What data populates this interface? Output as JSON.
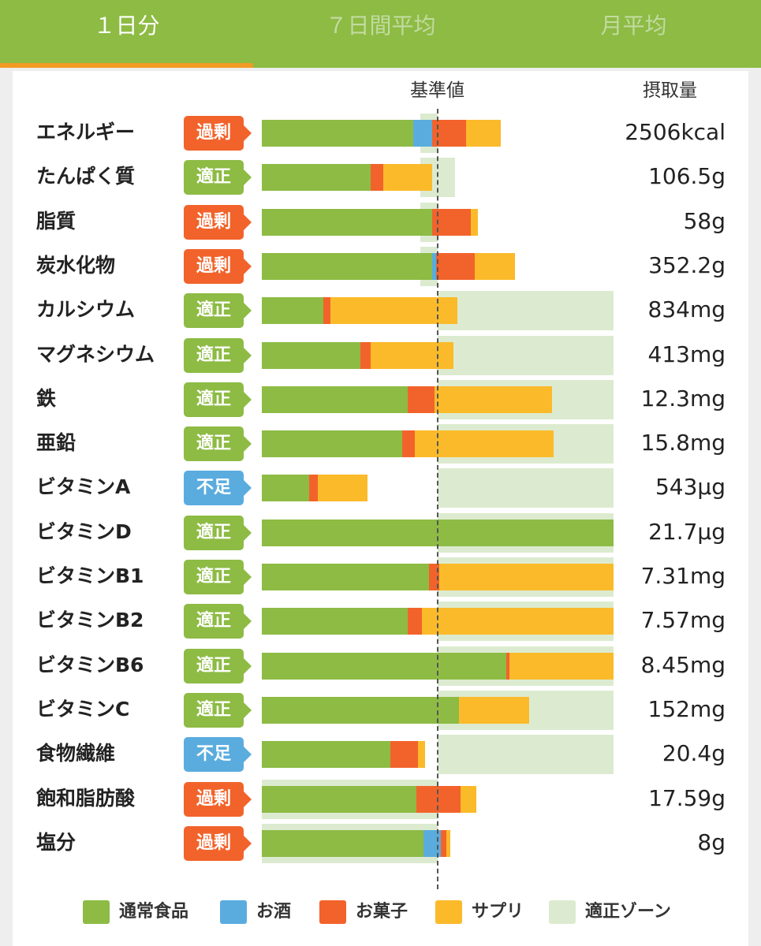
{
  "tabs": [
    {
      "label": "１日分",
      "active": true
    },
    {
      "label": "７日間平均",
      "active": false
    },
    {
      "label": "月平均",
      "active": false
    }
  ],
  "header": {
    "reference_label": "基準値",
    "intake_label": "摂取量"
  },
  "colors": {
    "normal_food": "#8dbb44",
    "alcohol": "#5aacde",
    "snacks": "#f2632b",
    "supplement": "#fbba2a",
    "zone": "#dcebd0",
    "excess": "#f2632b",
    "proper": "#8dbb44",
    "deficient": "#5aacde"
  },
  "status_labels": {
    "excess": "過剰",
    "proper": "適正",
    "deficient": "不足"
  },
  "chart_data": {
    "type": "bar",
    "stacked": true,
    "orientation": "horizontal",
    "reference_percent": 100,
    "series_names": [
      "通常食品",
      "お酒",
      "お菓子",
      "サプリ"
    ],
    "rows": [
      {
        "name": "エネルギー",
        "status": "excess",
        "value": "2506kcal",
        "zone": [
          90,
          100
        ],
        "segments": [
          86,
          11,
          19,
          20
        ]
      },
      {
        "name": "たんぱく質",
        "status": "proper",
        "value": "106.5g",
        "zone": [
          90,
          110
        ],
        "segments": [
          62,
          0,
          7,
          28
        ]
      },
      {
        "name": "脂質",
        "status": "excess",
        "value": "58g",
        "zone": [
          90,
          100
        ],
        "segments": [
          97,
          0,
          22,
          4
        ]
      },
      {
        "name": "炭水化物",
        "status": "excess",
        "value": "352.2g",
        "zone": [
          90,
          100
        ],
        "segments": [
          97,
          2,
          22,
          23
        ]
      },
      {
        "name": "カルシウム",
        "status": "proper",
        "value": "834mg",
        "zone": [
          100,
          200
        ],
        "segments": [
          35,
          0,
          4,
          72
        ]
      },
      {
        "name": "マグネシウム",
        "status": "proper",
        "value": "413mg",
        "zone": [
          100,
          200
        ],
        "segments": [
          56,
          0,
          6,
          47
        ]
      },
      {
        "name": "鉄",
        "status": "proper",
        "value": "12.3mg",
        "zone": [
          100,
          200
        ],
        "segments": [
          83,
          0,
          15,
          67
        ]
      },
      {
        "name": "亜鉛",
        "status": "proper",
        "value": "15.8mg",
        "zone": [
          100,
          200
        ],
        "segments": [
          80,
          0,
          7,
          79
        ]
      },
      {
        "name": "ビタミンA",
        "status": "deficient",
        "value": "543μg",
        "zone": [
          100,
          200
        ],
        "segments": [
          27,
          0,
          5,
          28
        ]
      },
      {
        "name": "ビタミンD",
        "status": "proper",
        "value": "21.7μg",
        "zone": [
          100,
          200
        ],
        "segments": [
          200,
          0,
          0,
          0
        ]
      },
      {
        "name": "ビタミンB1",
        "status": "proper",
        "value": "7.31mg",
        "zone": [
          100,
          200
        ],
        "segments": [
          95,
          0,
          6,
          99
        ]
      },
      {
        "name": "ビタミンB2",
        "status": "proper",
        "value": "7.57mg",
        "zone": [
          100,
          200
        ],
        "segments": [
          83,
          0,
          8,
          109
        ]
      },
      {
        "name": "ビタミンB6",
        "status": "proper",
        "value": "8.45mg",
        "zone": [
          100,
          200
        ],
        "segments": [
          139,
          0,
          2,
          59
        ]
      },
      {
        "name": "ビタミンC",
        "status": "proper",
        "value": "152mg",
        "zone": [
          100,
          200
        ],
        "segments": [
          112,
          0,
          0,
          40
        ]
      },
      {
        "name": "食物繊維",
        "status": "deficient",
        "value": "20.4g",
        "zone": [
          100,
          200
        ],
        "segments": [
          73,
          0,
          16,
          4
        ]
      },
      {
        "name": "飽和脂肪酸",
        "status": "excess",
        "value": "17.59g",
        "zone": [
          0,
          100
        ],
        "segments": [
          88,
          0,
          25,
          9
        ]
      },
      {
        "name": "塩分",
        "status": "excess",
        "value": "8g",
        "zone": [
          0,
          100
        ],
        "segments": [
          92,
          10,
          3,
          2
        ]
      }
    ]
  },
  "legend": [
    {
      "label": "通常食品",
      "color": "#8dbb44"
    },
    {
      "label": "お酒",
      "color": "#5aacde"
    },
    {
      "label": "お菓子",
      "color": "#f2632b"
    },
    {
      "label": "サプリ",
      "color": "#fbba2a"
    },
    {
      "label": "適正ゾーン",
      "color": "#dcebd0"
    }
  ]
}
